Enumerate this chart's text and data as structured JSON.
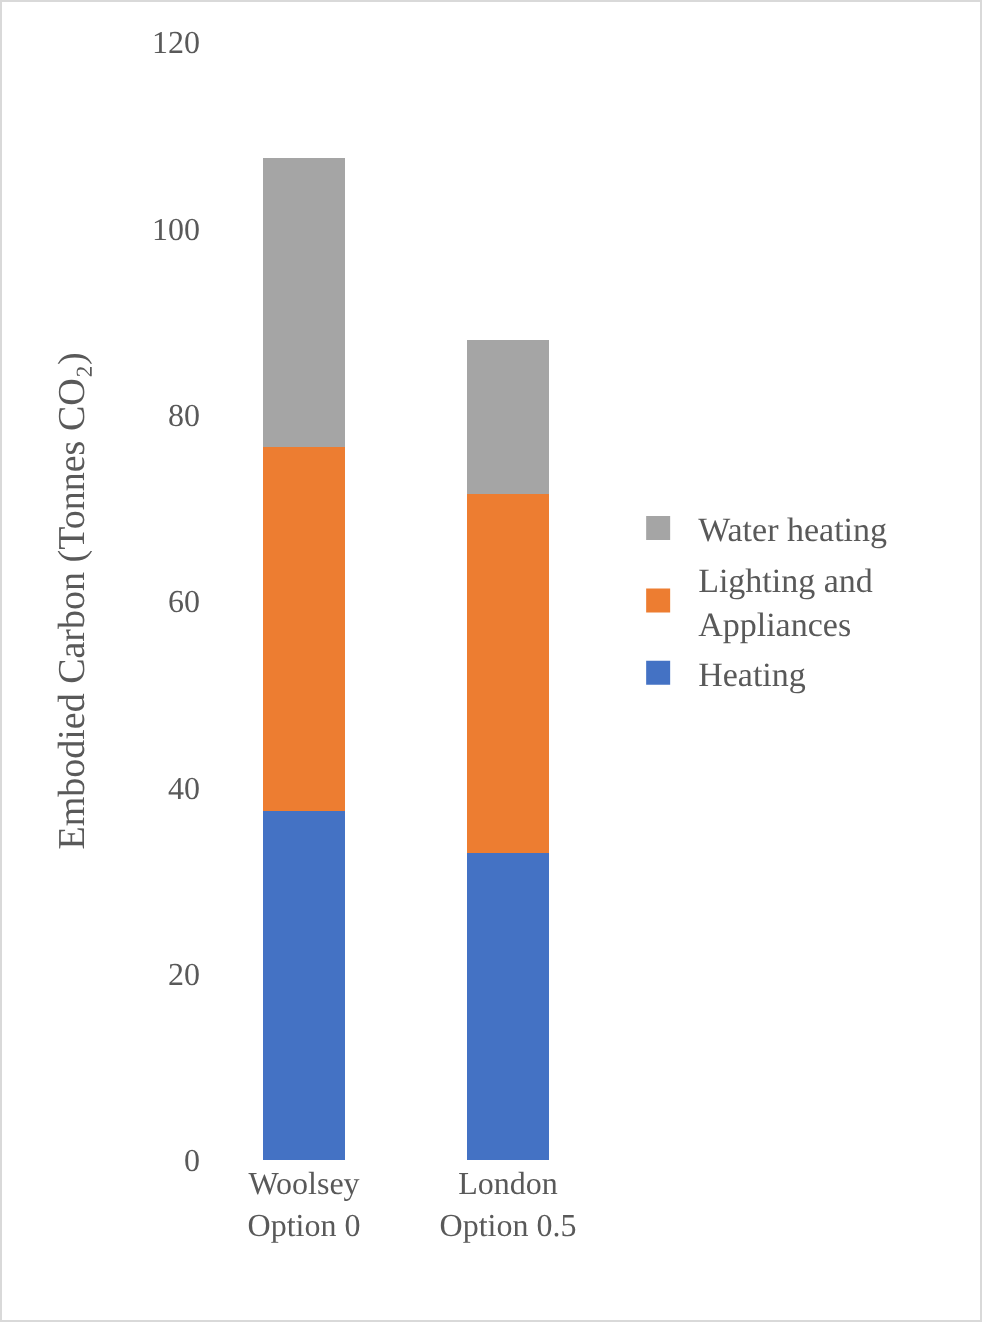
{
  "chart_data": {
    "type": "bar",
    "stacked": true,
    "ylabel": "Embodied Carbon (Tonnes CO₂)",
    "categories": [
      "Woolsey\nOption 0",
      "London\nOption 0.5"
    ],
    "series": [
      {
        "name": "Heating",
        "color": "#4472c4",
        "values": [
          37.5,
          33
        ]
      },
      {
        "name": "Lighting and Appliances",
        "color": "#ed7d31",
        "values": [
          39,
          38.5
        ]
      },
      {
        "name": "Water heating",
        "color": "#a5a5a5",
        "values": [
          31,
          16.5
        ]
      }
    ],
    "ylim": [
      0,
      120
    ],
    "yticks": [
      0,
      20,
      40,
      60,
      80,
      100,
      120
    ],
    "legend": "right"
  }
}
